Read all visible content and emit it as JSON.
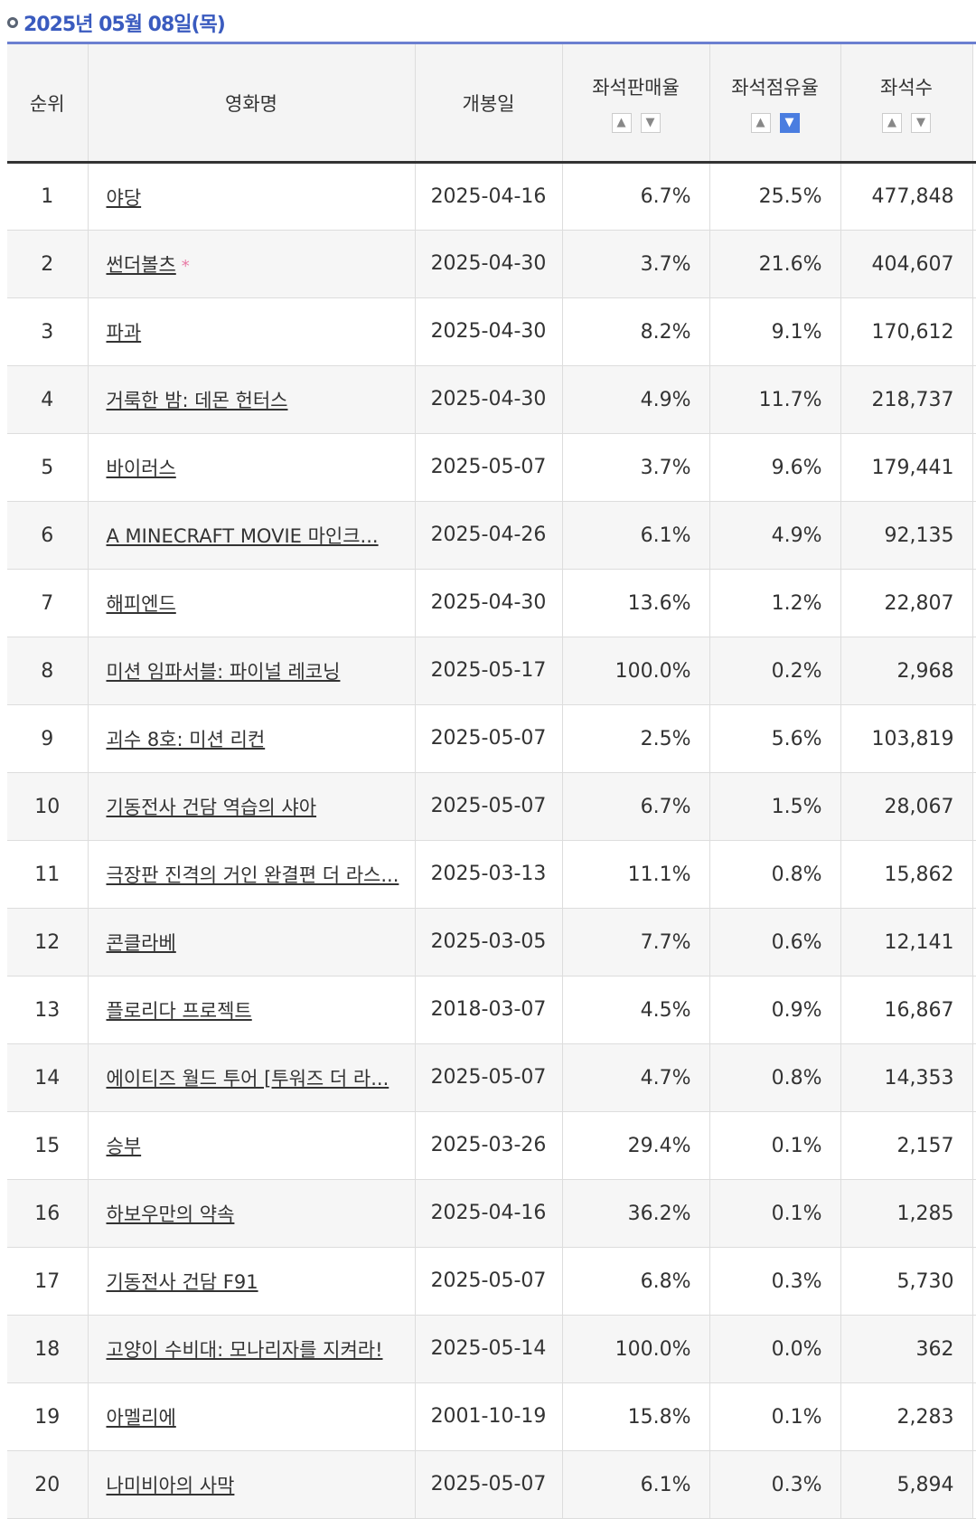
{
  "date_header": "2025년 05월 08일(목)",
  "columns": {
    "rank": "순위",
    "title": "영화명",
    "release": "개봉일",
    "sales_rate": "좌석판매율",
    "share_rate": "좌석점유율",
    "seats": "좌석수"
  },
  "sort_icons": {
    "up": "▲",
    "down": "▼"
  },
  "active_sort": "share_rate-desc",
  "accent_color": "#4a7de0",
  "rows": [
    {
      "rank": "1",
      "title": "야당",
      "release": "2025-04-16",
      "sales_rate": "6.7%",
      "share_rate": "25.5%",
      "seats": "477,848"
    },
    {
      "rank": "2",
      "title": "썬더볼츠",
      "star": "*",
      "release": "2025-04-30",
      "sales_rate": "3.7%",
      "share_rate": "21.6%",
      "seats": "404,607"
    },
    {
      "rank": "3",
      "title": "파과",
      "release": "2025-04-30",
      "sales_rate": "8.2%",
      "share_rate": "9.1%",
      "seats": "170,612"
    },
    {
      "rank": "4",
      "title": "거룩한 밤: 데몬 헌터스",
      "release": "2025-04-30",
      "sales_rate": "4.9%",
      "share_rate": "11.7%",
      "seats": "218,737"
    },
    {
      "rank": "5",
      "title": "바이러스",
      "release": "2025-05-07",
      "sales_rate": "3.7%",
      "share_rate": "9.6%",
      "seats": "179,441"
    },
    {
      "rank": "6",
      "title": "A MINECRAFT MOVIE 마인크...",
      "release": "2025-04-26",
      "sales_rate": "6.1%",
      "share_rate": "4.9%",
      "seats": "92,135"
    },
    {
      "rank": "7",
      "title": "해피엔드",
      "release": "2025-04-30",
      "sales_rate": "13.6%",
      "share_rate": "1.2%",
      "seats": "22,807"
    },
    {
      "rank": "8",
      "title": "미션 임파서블: 파이널 레코닝",
      "release": "2025-05-17",
      "sales_rate": "100.0%",
      "share_rate": "0.2%",
      "seats": "2,968"
    },
    {
      "rank": "9",
      "title": "괴수 8호: 미션 리컨",
      "release": "2025-05-07",
      "sales_rate": "2.5%",
      "share_rate": "5.6%",
      "seats": "103,819"
    },
    {
      "rank": "10",
      "title": "기동전사 건담 역습의 샤아",
      "release": "2025-05-07",
      "sales_rate": "6.7%",
      "share_rate": "1.5%",
      "seats": "28,067"
    },
    {
      "rank": "11",
      "title": "극장판 진격의 거인 완결편 더 라스...",
      "release": "2025-03-13",
      "sales_rate": "11.1%",
      "share_rate": "0.8%",
      "seats": "15,862"
    },
    {
      "rank": "12",
      "title": "콘클라베",
      "release": "2025-03-05",
      "sales_rate": "7.7%",
      "share_rate": "0.6%",
      "seats": "12,141"
    },
    {
      "rank": "13",
      "title": "플로리다 프로젝트",
      "release": "2018-03-07",
      "sales_rate": "4.5%",
      "share_rate": "0.9%",
      "seats": "16,867"
    },
    {
      "rank": "14",
      "title": "에이티즈 월드 투어 [투워즈 더 라...",
      "release": "2025-05-07",
      "sales_rate": "4.7%",
      "share_rate": "0.8%",
      "seats": "14,353"
    },
    {
      "rank": "15",
      "title": "승부",
      "release": "2025-03-26",
      "sales_rate": "29.4%",
      "share_rate": "0.1%",
      "seats": "2,157"
    },
    {
      "rank": "16",
      "title": "하보우만의 약속",
      "release": "2025-04-16",
      "sales_rate": "36.2%",
      "share_rate": "0.1%",
      "seats": "1,285"
    },
    {
      "rank": "17",
      "title": "기동전사 건담 F91",
      "release": "2025-05-07",
      "sales_rate": "6.8%",
      "share_rate": "0.3%",
      "seats": "5,730"
    },
    {
      "rank": "18",
      "title": "고양이 수비대: 모나리자를 지켜라!",
      "release": "2025-05-14",
      "sales_rate": "100.0%",
      "share_rate": "0.0%",
      "seats": "362"
    },
    {
      "rank": "19",
      "title": "아멜리에",
      "release": "2001-10-19",
      "sales_rate": "15.8%",
      "share_rate": "0.1%",
      "seats": "2,283"
    },
    {
      "rank": "20",
      "title": "나미비아의 사막",
      "release": "2025-05-07",
      "sales_rate": "6.1%",
      "share_rate": "0.3%",
      "seats": "5,894"
    }
  ]
}
